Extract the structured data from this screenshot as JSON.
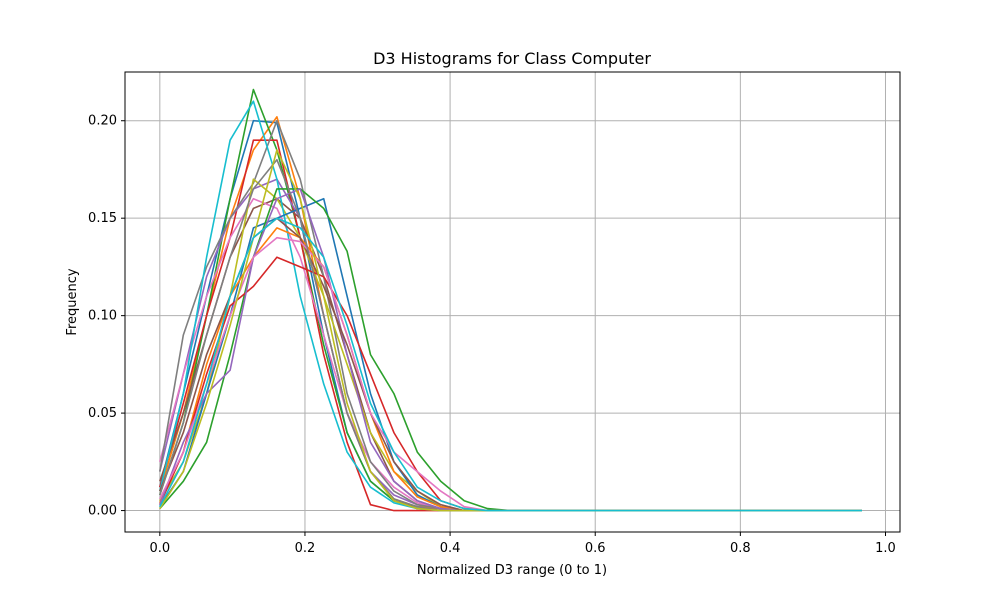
{
  "chart_data": {
    "type": "line",
    "title": "D3 Histograms for Class Computer",
    "xlabel": "Normalized D3 range (0 to 1)",
    "ylabel": "Frequency",
    "xlim": [
      -0.048,
      1.02
    ],
    "ylim": [
      -0.011,
      0.225
    ],
    "grid": true,
    "x_ticks": [
      0.0,
      0.2,
      0.4,
      0.6,
      0.8,
      1.0
    ],
    "x_tick_labels": [
      "0.0",
      "0.2",
      "0.4",
      "0.6",
      "0.8",
      "1.0"
    ],
    "y_ticks": [
      0.0,
      0.05,
      0.1,
      0.15,
      0.2
    ],
    "y_tick_labels": [
      "0.00",
      "0.05",
      "0.10",
      "0.15",
      "0.20"
    ],
    "x": [
      0.0,
      0.0323,
      0.0645,
      0.0968,
      0.129,
      0.1613,
      0.1935,
      0.2258,
      0.2581,
      0.2903,
      0.3226,
      0.3548,
      0.3871,
      0.4194,
      0.4516,
      0.4839,
      0.5161,
      0.5484,
      0.5806,
      0.6129,
      0.6452,
      0.6774,
      0.7097,
      0.7419,
      0.7742,
      0.8065,
      0.8387,
      0.871,
      0.9032,
      0.9355,
      0.9677
    ],
    "colors": [
      "#1f77b4",
      "#ff7f0e",
      "#2ca02c",
      "#d62728",
      "#9467bd",
      "#8c564b",
      "#e377c2",
      "#7f7f7f",
      "#bcbd22",
      "#17becf"
    ],
    "series": [
      {
        "values": [
          0.012,
          0.06,
          0.11,
          0.16,
          0.2,
          0.199,
          0.15,
          0.09,
          0.04,
          0.015,
          0.005,
          0.002,
          0.001,
          0,
          0,
          0,
          0,
          0,
          0,
          0,
          0,
          0,
          0,
          0,
          0,
          0,
          0,
          0,
          0,
          0,
          0
        ]
      },
      {
        "values": [
          0.01,
          0.05,
          0.1,
          0.15,
          0.185,
          0.202,
          0.16,
          0.1,
          0.05,
          0.02,
          0.006,
          0.002,
          0.001,
          0,
          0,
          0,
          0,
          0,
          0,
          0,
          0,
          0,
          0,
          0,
          0,
          0,
          0,
          0,
          0,
          0,
          0
        ]
      },
      {
        "values": [
          0.008,
          0.045,
          0.1,
          0.16,
          0.216,
          0.185,
          0.14,
          0.085,
          0.04,
          0.015,
          0.005,
          0.001,
          0,
          0,
          0,
          0,
          0,
          0,
          0,
          0,
          0,
          0,
          0,
          0,
          0,
          0,
          0,
          0,
          0,
          0,
          0
        ]
      },
      {
        "values": [
          0.012,
          0.055,
          0.1,
          0.14,
          0.19,
          0.19,
          0.14,
          0.08,
          0.035,
          0.003,
          0.0,
          0,
          0,
          0,
          0,
          0,
          0,
          0,
          0,
          0,
          0,
          0,
          0,
          0,
          0,
          0,
          0,
          0,
          0,
          0,
          0
        ]
      },
      {
        "values": [
          0.02,
          0.07,
          0.12,
          0.15,
          0.165,
          0.17,
          0.15,
          0.1,
          0.05,
          0.02,
          0.008,
          0.003,
          0.001,
          0,
          0,
          0,
          0,
          0,
          0,
          0,
          0,
          0,
          0,
          0,
          0,
          0,
          0,
          0,
          0,
          0,
          0
        ]
      },
      {
        "values": [
          0.015,
          0.05,
          0.09,
          0.13,
          0.155,
          0.16,
          0.15,
          0.12,
          0.08,
          0.04,
          0.015,
          0.005,
          0.001,
          0,
          0,
          0,
          0,
          0,
          0,
          0,
          0,
          0,
          0,
          0,
          0,
          0,
          0,
          0,
          0,
          0,
          0
        ]
      },
      {
        "values": [
          0.025,
          0.07,
          0.11,
          0.14,
          0.16,
          0.155,
          0.13,
          0.09,
          0.05,
          0.025,
          0.012,
          0.004,
          0.001,
          0,
          0,
          0,
          0,
          0,
          0,
          0,
          0,
          0,
          0,
          0,
          0,
          0,
          0,
          0,
          0,
          0,
          0
        ]
      },
      {
        "values": [
          0.02,
          0.09,
          0.125,
          0.15,
          0.168,
          0.2,
          0.17,
          0.12,
          0.06,
          0.025,
          0.01,
          0.003,
          0.001,
          0,
          0,
          0,
          0,
          0,
          0,
          0,
          0,
          0,
          0,
          0,
          0,
          0,
          0,
          0,
          0,
          0,
          0
        ]
      },
      {
        "values": [
          0.005,
          0.025,
          0.06,
          0.11,
          0.17,
          0.16,
          0.14,
          0.11,
          0.075,
          0.04,
          0.02,
          0.01,
          0.002,
          0,
          0,
          0,
          0,
          0,
          0,
          0,
          0,
          0,
          0,
          0,
          0,
          0,
          0,
          0,
          0,
          0,
          0
        ]
      },
      {
        "values": [
          0.01,
          0.06,
          0.13,
          0.19,
          0.21,
          0.17,
          0.11,
          0.065,
          0.03,
          0.012,
          0.004,
          0.001,
          0,
          0,
          0,
          0,
          0,
          0,
          0,
          0,
          0,
          0,
          0,
          0,
          0,
          0,
          0,
          0,
          0,
          0,
          0
        ]
      },
      {
        "values": [
          0.002,
          0.02,
          0.06,
          0.1,
          0.145,
          0.15,
          0.155,
          0.16,
          0.11,
          0.06,
          0.025,
          0.008,
          0.002,
          0,
          0,
          0,
          0,
          0,
          0,
          0,
          0,
          0,
          0,
          0,
          0,
          0,
          0,
          0,
          0,
          0,
          0
        ]
      },
      {
        "values": [
          0.004,
          0.03,
          0.075,
          0.11,
          0.13,
          0.145,
          0.14,
          0.125,
          0.09,
          0.05,
          0.02,
          0.007,
          0.002,
          0,
          0,
          0,
          0,
          0,
          0,
          0,
          0,
          0,
          0,
          0,
          0,
          0,
          0,
          0,
          0,
          0,
          0
        ]
      },
      {
        "values": [
          0.001,
          0.015,
          0.035,
          0.08,
          0.13,
          0.165,
          0.165,
          0.155,
          0.133,
          0.08,
          0.06,
          0.03,
          0.015,
          0.005,
          0.001,
          0,
          0,
          0,
          0,
          0,
          0,
          0,
          0,
          0,
          0,
          0,
          0,
          0,
          0,
          0,
          0
        ]
      },
      {
        "values": [
          0.003,
          0.03,
          0.07,
          0.105,
          0.115,
          0.13,
          0.125,
          0.12,
          0.1,
          0.07,
          0.04,
          0.02,
          0.005,
          0.001,
          0,
          0,
          0,
          0,
          0,
          0,
          0,
          0,
          0,
          0,
          0,
          0,
          0,
          0,
          0,
          0,
          0
        ]
      },
      {
        "values": [
          0.003,
          0.035,
          0.06,
          0.072,
          0.13,
          0.16,
          0.165,
          0.13,
          0.08,
          0.035,
          0.015,
          0.005,
          0.001,
          0,
          0,
          0,
          0,
          0,
          0,
          0,
          0,
          0,
          0,
          0,
          0,
          0,
          0,
          0,
          0,
          0,
          0
        ]
      },
      {
        "values": [
          0.01,
          0.04,
          0.08,
          0.11,
          0.14,
          0.15,
          0.14,
          0.115,
          0.085,
          0.05,
          0.025,
          0.01,
          0.003,
          0,
          0,
          0,
          0,
          0,
          0,
          0,
          0,
          0,
          0,
          0,
          0,
          0,
          0,
          0,
          0,
          0,
          0
        ]
      },
      {
        "values": [
          0.006,
          0.03,
          0.065,
          0.1,
          0.13,
          0.14,
          0.138,
          0.125,
          0.09,
          0.05,
          0.03,
          0.02,
          0.01,
          0.002,
          0,
          0,
          0,
          0,
          0,
          0,
          0,
          0,
          0,
          0,
          0,
          0,
          0,
          0,
          0,
          0,
          0
        ]
      },
      {
        "values": [
          0.008,
          0.045,
          0.09,
          0.13,
          0.165,
          0.18,
          0.15,
          0.1,
          0.05,
          0.02,
          0.006,
          0.002,
          0,
          0,
          0,
          0,
          0,
          0,
          0,
          0,
          0,
          0,
          0,
          0,
          0,
          0,
          0,
          0,
          0,
          0,
          0
        ]
      },
      {
        "values": [
          0.001,
          0.02,
          0.055,
          0.095,
          0.14,
          0.185,
          0.16,
          0.11,
          0.055,
          0.02,
          0.005,
          0.001,
          0,
          0,
          0,
          0,
          0,
          0,
          0,
          0,
          0,
          0,
          0,
          0,
          0,
          0,
          0,
          0,
          0,
          0,
          0
        ]
      },
      {
        "values": [
          0.002,
          0.025,
          0.065,
          0.11,
          0.14,
          0.15,
          0.145,
          0.13,
          0.095,
          0.055,
          0.03,
          0.012,
          0.005,
          0.001,
          0,
          0,
          0,
          0,
          0,
          0,
          0,
          0,
          0,
          0,
          0,
          0,
          0,
          0,
          0,
          0,
          0
        ]
      }
    ]
  }
}
